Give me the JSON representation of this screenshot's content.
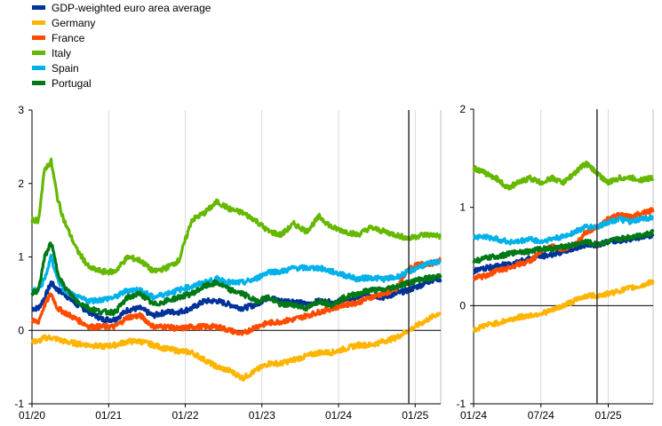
{
  "legend": {
    "items": [
      {
        "label": "GDP-weighted euro area average",
        "color": "#003299"
      },
      {
        "label": "Germany",
        "color": "#FFB400"
      },
      {
        "label": "France",
        "color": "#FF4B00"
      },
      {
        "label": "Italy",
        "color": "#65B800"
      },
      {
        "label": "Spain",
        "color": "#00B1EA"
      },
      {
        "label": "Portugal",
        "color": "#007816"
      }
    ]
  },
  "chart_data": [
    {
      "type": "line",
      "title": "",
      "xlabel": "",
      "ylabel": "",
      "ylim": [
        -1,
        3
      ],
      "yticks": [
        "-1",
        "0",
        "1",
        "2",
        "3"
      ],
      "xticks": [
        "01/20",
        "01/21",
        "01/22",
        "01/23",
        "01/24",
        "01/25"
      ],
      "x_range": [
        "2020-01",
        "2025-05"
      ],
      "vertical_line_at": "2024-12",
      "grid": "vertical",
      "x": [
        "2020-01",
        "2020-02",
        "2020-03",
        "2020-04",
        "2020-05",
        "2020-06",
        "2020-08",
        "2020-10",
        "2020-12",
        "2021-02",
        "2021-04",
        "2021-06",
        "2021-08",
        "2021-10",
        "2021-12",
        "2022-02",
        "2022-04",
        "2022-06",
        "2022-08",
        "2022-10",
        "2022-12",
        "2023-02",
        "2023-04",
        "2023-06",
        "2023-08",
        "2023-10",
        "2023-12",
        "2024-02",
        "2024-04",
        "2024-06",
        "2024-08",
        "2024-10",
        "2024-12",
        "2025-02",
        "2025-04",
        "2025-05"
      ],
      "series": [
        {
          "name": "GDP-weighted euro area average",
          "color": "#003299",
          "values": [
            0.3,
            0.3,
            0.45,
            0.65,
            0.55,
            0.5,
            0.35,
            0.25,
            0.15,
            0.15,
            0.28,
            0.3,
            0.2,
            0.25,
            0.25,
            0.3,
            0.4,
            0.4,
            0.35,
            0.3,
            0.35,
            0.45,
            0.4,
            0.4,
            0.35,
            0.4,
            0.38,
            0.4,
            0.45,
            0.48,
            0.45,
            0.5,
            0.55,
            0.62,
            0.7,
            0.7
          ]
        },
        {
          "name": "Germany",
          "color": "#FFB400",
          "values": [
            -0.15,
            -0.15,
            -0.1,
            -0.1,
            -0.12,
            -0.15,
            -0.18,
            -0.2,
            -0.22,
            -0.2,
            -0.15,
            -0.15,
            -0.2,
            -0.25,
            -0.28,
            -0.3,
            -0.4,
            -0.5,
            -0.55,
            -0.65,
            -0.55,
            -0.45,
            -0.45,
            -0.4,
            -0.35,
            -0.3,
            -0.3,
            -0.25,
            -0.2,
            -0.2,
            -0.15,
            -0.1,
            0.0,
            0.1,
            0.2,
            0.25
          ]
        },
        {
          "name": "France",
          "color": "#FF4B00",
          "values": [
            0.12,
            0.12,
            0.35,
            0.5,
            0.3,
            0.25,
            0.15,
            0.05,
            0.05,
            0.05,
            0.18,
            0.2,
            0.05,
            0.05,
            0.02,
            0.05,
            0.05,
            0.05,
            0.0,
            -0.05,
            0.05,
            0.1,
            0.12,
            0.15,
            0.2,
            0.25,
            0.3,
            0.35,
            0.38,
            0.45,
            0.5,
            0.55,
            0.85,
            0.9,
            0.92,
            0.95
          ]
        },
        {
          "name": "Italy",
          "color": "#65B800",
          "values": [
            1.5,
            1.5,
            2.2,
            2.3,
            1.8,
            1.5,
            1.1,
            0.85,
            0.8,
            0.8,
            1.0,
            0.95,
            0.8,
            0.85,
            0.95,
            1.5,
            1.6,
            1.75,
            1.65,
            1.6,
            1.5,
            1.35,
            1.3,
            1.45,
            1.35,
            1.55,
            1.4,
            1.35,
            1.3,
            1.4,
            1.35,
            1.3,
            1.25,
            1.3,
            1.3,
            1.28
          ]
        },
        {
          "name": "Spain",
          "color": "#00B1EA",
          "values": [
            0.55,
            0.55,
            0.7,
            1.0,
            0.7,
            0.55,
            0.45,
            0.4,
            0.42,
            0.45,
            0.55,
            0.55,
            0.45,
            0.5,
            0.55,
            0.6,
            0.65,
            0.7,
            0.65,
            0.65,
            0.7,
            0.8,
            0.8,
            0.85,
            0.85,
            0.85,
            0.8,
            0.75,
            0.7,
            0.72,
            0.7,
            0.72,
            0.8,
            0.88,
            0.92,
            0.95
          ]
        },
        {
          "name": "Portugal",
          "color": "#007816",
          "values": [
            0.5,
            0.55,
            1.0,
            1.2,
            0.8,
            0.6,
            0.4,
            0.3,
            0.25,
            0.25,
            0.45,
            0.5,
            0.35,
            0.4,
            0.45,
            0.5,
            0.6,
            0.65,
            0.55,
            0.5,
            0.4,
            0.45,
            0.35,
            0.35,
            0.3,
            0.4,
            0.35,
            0.45,
            0.5,
            0.55,
            0.55,
            0.6,
            0.65,
            0.7,
            0.72,
            0.75
          ]
        }
      ]
    },
    {
      "type": "line",
      "title": "",
      "xlabel": "",
      "ylabel": "",
      "ylim": [
        -1,
        2
      ],
      "yticks": [
        "-1",
        "0",
        "1",
        "2"
      ],
      "xticks": [
        "01/24",
        "07/24",
        "01/25"
      ],
      "x_range": [
        "2024-01",
        "2025-05"
      ],
      "vertical_line_at": "2024-12",
      "grid": "vertical",
      "x": [
        "2024-01",
        "2024-02",
        "2024-03",
        "2024-04",
        "2024-05",
        "2024-06",
        "2024-07",
        "2024-08",
        "2024-09",
        "2024-10",
        "2024-11",
        "2024-12",
        "2025-01",
        "2025-02",
        "2025-03",
        "2025-04",
        "2025-05"
      ],
      "series": [
        {
          "name": "GDP-weighted euro area average",
          "color": "#003299",
          "values": [
            0.35,
            0.38,
            0.4,
            0.42,
            0.45,
            0.48,
            0.5,
            0.52,
            0.55,
            0.58,
            0.62,
            0.62,
            0.65,
            0.66,
            0.68,
            0.7,
            0.72
          ]
        },
        {
          "name": "Germany",
          "color": "#FFB400",
          "values": [
            -0.25,
            -0.2,
            -0.18,
            -0.15,
            -0.12,
            -0.1,
            -0.08,
            -0.05,
            0.0,
            0.05,
            0.1,
            0.1,
            0.12,
            0.15,
            0.18,
            0.2,
            0.25
          ]
        },
        {
          "name": "France",
          "color": "#FF4B00",
          "values": [
            0.28,
            0.3,
            0.35,
            0.38,
            0.42,
            0.45,
            0.55,
            0.6,
            0.58,
            0.62,
            0.75,
            0.8,
            0.88,
            0.92,
            0.9,
            0.95,
            0.97
          ]
        },
        {
          "name": "Italy",
          "color": "#65B800",
          "values": [
            1.4,
            1.35,
            1.3,
            1.2,
            1.25,
            1.3,
            1.25,
            1.3,
            1.25,
            1.35,
            1.45,
            1.35,
            1.25,
            1.3,
            1.3,
            1.28,
            1.3
          ]
        },
        {
          "name": "Spain",
          "color": "#00B1EA",
          "values": [
            0.7,
            0.7,
            0.68,
            0.65,
            0.65,
            0.68,
            0.65,
            0.68,
            0.7,
            0.75,
            0.8,
            0.8,
            0.85,
            0.88,
            0.85,
            0.88,
            0.9
          ]
        },
        {
          "name": "Portugal",
          "color": "#007816",
          "values": [
            0.45,
            0.48,
            0.5,
            0.52,
            0.55,
            0.55,
            0.58,
            0.58,
            0.6,
            0.62,
            0.65,
            0.62,
            0.65,
            0.68,
            0.7,
            0.72,
            0.75
          ]
        }
      ]
    }
  ]
}
